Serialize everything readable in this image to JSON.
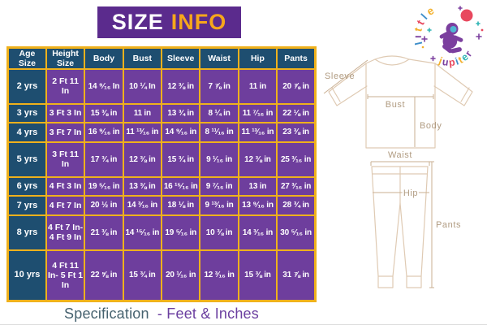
{
  "title": {
    "size": "SIZE",
    "info": "INFO"
  },
  "logo": {
    "word_top": "little",
    "word_bottom": "jupiter",
    "letter_colors_top": [
      "#3f8fca",
      "#7b3f9e",
      "#f2b02c",
      "#e8485e",
      "#3f8fca",
      "#f2b02c"
    ],
    "letter_colors_bottom": [
      "#f2b02c",
      "#7b3f9e",
      "#e8485e",
      "#3f8fca",
      "#f2b02c",
      "#2fb4b4",
      "#7b3f9e"
    ]
  },
  "table": {
    "headers": [
      "Age Size",
      "Height Size",
      "Body",
      "Bust",
      "Sleeve",
      "Waist",
      "Hip",
      "Pants"
    ],
    "rows": [
      {
        "age": "2 yrs",
        "cells": [
          "2 Ft 11 In",
          "14 ⁹⁄₁₆ In",
          "10 ¼ In",
          "12 ⅜ in",
          "7 ⅞ in",
          "11 in",
          "20 ⅞ in"
        ]
      },
      {
        "age": "3 yrs",
        "cells": [
          "3 Ft 3 In",
          "15 ⅜ in",
          "11 in",
          "13 ¾ in",
          "8 ¼ in",
          "11 ⁷⁄₁₆ in",
          "22 ⅛ in"
        ]
      },
      {
        "age": "4 yrs",
        "cells": [
          "3 Ft 7 In",
          "16 ⁹⁄₁₆ in",
          "11 ¹³⁄₁₆ in",
          "14 ⁹⁄₁₆ in",
          "8 ¹¹⁄₁₆ in",
          "11 ¹³⁄₁₆ in",
          "23 ⅜ in"
        ]
      },
      {
        "age": "5 yrs",
        "cells": [
          "3 Ft 11 In",
          "17 ¾ in",
          "12 ⅜ in",
          "15 ¾ in",
          "9 ¹⁄₁₆ in",
          "12 ⅜ in",
          "25 ³⁄₁₆ in"
        ]
      },
      {
        "age": "6 yrs",
        "cells": [
          "4 Ft 3 In",
          "19 ⁵⁄₁₆ in",
          "13 ⅜ in",
          "16 ¹⁵⁄₁₆ in",
          "9 ⁷⁄₁₆ in",
          "13 in",
          "27 ³⁄₁₆ in"
        ]
      },
      {
        "age": "7 yrs",
        "cells": [
          "4 Ft 7 In",
          "20 ½ in",
          "14 ³⁄₁₆ in",
          "18 ⅛ in",
          "9 ¹³⁄₁₆ in",
          "13 ⁹⁄₁₆ in",
          "28 ¾ in"
        ]
      },
      {
        "age": "8 yrs",
        "cells": [
          "4 Ft 7 In- 4 Ft 9 In",
          "21 ⅜ in",
          "14 ¹⁵⁄₁₆ in",
          "19 ⁵⁄₁₆ in",
          "10 ⅜ in",
          "14 ³⁄₁₆ in",
          "30 ⁵⁄₁₆ in"
        ]
      },
      {
        "age": "10 yrs",
        "cells": [
          "4 Ft 11 In- 5 Ft 1 In",
          "22 ⅝ in",
          "15 ¾ in",
          "20 ¹⁄₁₆ in",
          "12 ³⁄₁₆ in",
          "15 ⅜ in",
          "31 ⅞ in"
        ]
      }
    ]
  },
  "diagram": {
    "labels": {
      "sleeve": "Sleeve",
      "bust": "Bust",
      "body": "Body",
      "waist": "Waist",
      "hip": "Hip",
      "pants": "Pants"
    }
  },
  "caption": {
    "part1": "Specification",
    "part2": "- Feet & Inches"
  },
  "colors": {
    "accent_gold": "#efb11c",
    "header_navy": "#1e4e70",
    "cell_purple": "#6e3e9d",
    "title_purple": "#5b2b8d",
    "info_yellow": "#f6a71b",
    "caption_slate": "#46626f",
    "caption_purple": "#6b3fa0",
    "diagram_outline": "#dfcab3",
    "diagram_label": "#b19c82",
    "logo_red": "#e8485e",
    "logo_blue": "#3f8fca",
    "logo_yellow": "#f2b02c",
    "logo_purple": "#7b3f9e",
    "logo_teal": "#2fb4b4"
  }
}
